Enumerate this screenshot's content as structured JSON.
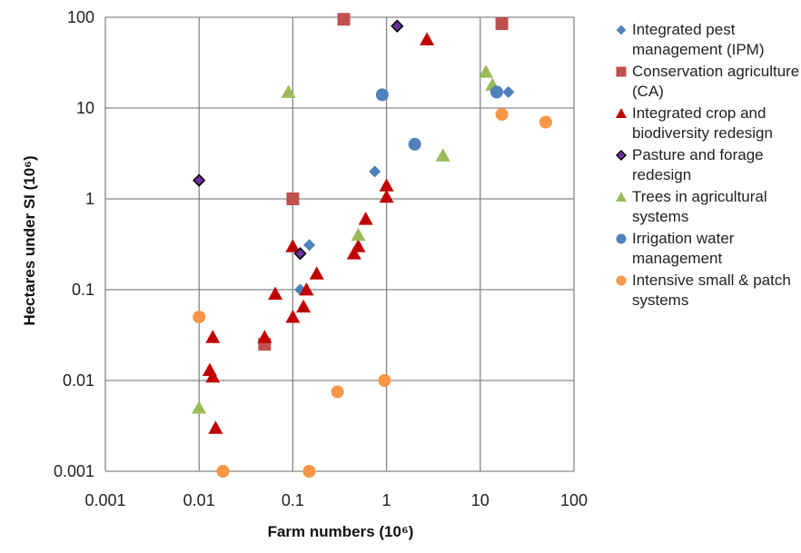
{
  "chart_data": {
    "type": "scatter",
    "xlabel": "Farm numbers (10⁶)",
    "ylabel": "Hectares under SI (10⁶)",
    "xscale": "log",
    "yscale": "log",
    "xlim": [
      0.001,
      100
    ],
    "ylim": [
      0.001,
      100
    ],
    "x_ticks": [
      "0.001",
      "0.01",
      "0.1",
      "1",
      "10",
      "100"
    ],
    "y_ticks": [
      "0.001",
      "0.01",
      "0.1",
      "1",
      "10",
      "100"
    ],
    "grid": true,
    "legend_position": "right",
    "series": [
      {
        "name": "Integrated pest management (IPM)",
        "marker": "diamond",
        "color": "#4F81BD",
        "points": [
          [
            0.12,
            0.1
          ],
          [
            0.15,
            0.31
          ],
          [
            0.75,
            2.0
          ],
          [
            20,
            15
          ]
        ]
      },
      {
        "name": "Conservation agriculture (CA)",
        "marker": "square",
        "color": "#C0504D",
        "points": [
          [
            0.35,
            95
          ],
          [
            17,
            85
          ],
          [
            0.1,
            1.0
          ],
          [
            0.05,
            0.025
          ]
        ]
      },
      {
        "name": "Integrated crop and biodiversity redesign",
        "marker": "triangle",
        "color": "#C00000",
        "points": [
          [
            2.7,
            57
          ],
          [
            1.0,
            1.4
          ],
          [
            1.0,
            1.05
          ],
          [
            0.6,
            0.6
          ],
          [
            0.5,
            0.3
          ],
          [
            0.45,
            0.25
          ],
          [
            0.1,
            0.3
          ],
          [
            0.18,
            0.15
          ],
          [
            0.14,
            0.1
          ],
          [
            0.13,
            0.065
          ],
          [
            0.1,
            0.05
          ],
          [
            0.065,
            0.09
          ],
          [
            0.05,
            0.03
          ],
          [
            0.014,
            0.03
          ],
          [
            0.013,
            0.013
          ],
          [
            0.014,
            0.011
          ],
          [
            0.015,
            0.003
          ]
        ]
      },
      {
        "name": "Pasture and forage redesign",
        "marker": "diamond",
        "color": "#7030A0",
        "points": [
          [
            1.3,
            80
          ],
          [
            0.01,
            1.6
          ],
          [
            0.12,
            0.25
          ]
        ]
      },
      {
        "name": "Trees in agricultural systems",
        "marker": "triangle",
        "color": "#9BBB59",
        "points": [
          [
            0.09,
            15
          ],
          [
            11.5,
            25
          ],
          [
            13.5,
            18
          ],
          [
            4.0,
            3.0
          ],
          [
            0.5,
            0.4
          ],
          [
            0.01,
            0.005
          ]
        ]
      },
      {
        "name": "Irrigation water management",
        "marker": "circle",
        "color": "#4F81BD",
        "points": [
          [
            0.9,
            14
          ],
          [
            2.0,
            4.0
          ],
          [
            15,
            15
          ]
        ]
      },
      {
        "name": "Intensive small & patch systems",
        "marker": "circle",
        "color": "#F79646",
        "points": [
          [
            17,
            8.5
          ],
          [
            50,
            7.0
          ],
          [
            0.01,
            0.05
          ],
          [
            0.3,
            0.0075
          ],
          [
            0.95,
            0.01
          ],
          [
            0.018,
            0.001
          ],
          [
            0.15,
            0.001
          ]
        ]
      }
    ]
  }
}
